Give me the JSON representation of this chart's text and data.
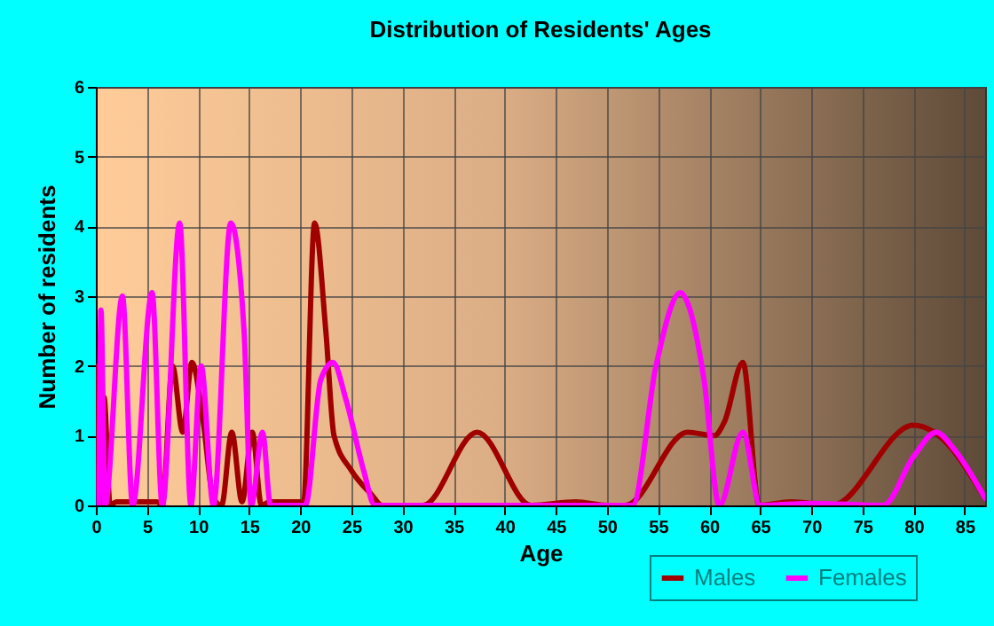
{
  "chart_data": {
    "type": "line",
    "title": "Distribution of Residents' Ages",
    "xlabel": "Age",
    "ylabel": "Number of residents",
    "xlim": [
      0,
      87
    ],
    "xticks": [
      0,
      5,
      10,
      15,
      20,
      25,
      30,
      35,
      40,
      45,
      50,
      55,
      60,
      65,
      70,
      75,
      80,
      85
    ],
    "ylim": [
      0,
      6
    ],
    "yticks": [
      0,
      1,
      2,
      3,
      4,
      5,
      6
    ],
    "grid": true,
    "legend": "bottom right",
    "marker": "none",
    "line_style": "solid",
    "series": [
      {
        "name": "Males",
        "color": "#a00000",
        "x": [
          0,
          0.4,
          0.8,
          1.4,
          2,
          4,
          6,
          6.5,
          7.5,
          8.5,
          9.4,
          10.5,
          11.5,
          12.3,
          13.3,
          14.3,
          15.3,
          16.2,
          17,
          20,
          20.3,
          21.4,
          22.5,
          23.3,
          25,
          27,
          28,
          32,
          37.3,
          42.6,
          47,
          50,
          51.8,
          57.9,
          60.5,
          61.5,
          63.3,
          64.9,
          68,
          72,
          80,
          82,
          87
        ],
        "values": [
          2,
          0,
          1.55,
          0,
          0.05,
          0.05,
          0.05,
          0,
          2,
          1.05,
          2.05,
          1.2,
          0.1,
          0,
          1.05,
          0.05,
          1.05,
          0,
          0.05,
          0.05,
          0,
          4.05,
          2.5,
          1,
          0.5,
          0.15,
          0,
          0,
          1.05,
          0,
          0.05,
          0,
          0,
          1.05,
          1,
          1.2,
          2.05,
          0,
          0.05,
          0,
          1.15,
          1.05,
          0.1
        ]
      },
      {
        "name": "Females",
        "color": "#ff00ff",
        "x": [
          0.3,
          0.5,
          0.9,
          2.6,
          3.6,
          5.5,
          6.5,
          8.2,
          9.3,
          10.3,
          11.5,
          13.2,
          14.5,
          15.2,
          16.3,
          17.1,
          20.5,
          22,
          23.2,
          24.5,
          26.2,
          27.3,
          52.5,
          54.8,
          57.2,
          57.9,
          59.5,
          61,
          63.3,
          65,
          70,
          77,
          80,
          82.2,
          84,
          87
        ],
        "values": [
          0,
          2.8,
          0,
          3,
          0,
          3.05,
          0,
          4.05,
          0,
          2,
          0,
          4.05,
          2.5,
          0,
          1.05,
          0,
          0,
          1.8,
          2.05,
          1.5,
          0.5,
          0,
          0,
          2,
          3.05,
          2.9,
          1.8,
          0,
          1.05,
          0,
          0.03,
          0,
          0.7,
          1.05,
          0.8,
          0.1
        ]
      }
    ]
  }
}
